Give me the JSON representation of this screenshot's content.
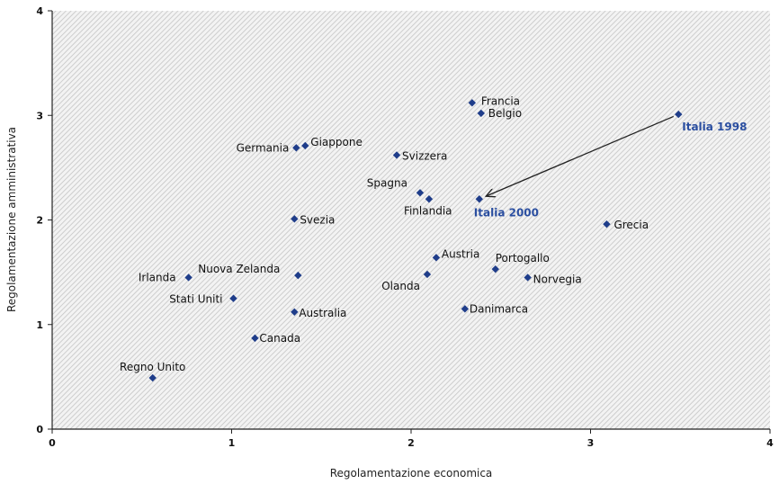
{
  "chart_data": {
    "type": "scatter",
    "xlabel": "Regolamentazione economica",
    "ylabel": "Regolamentazione amministrativa",
    "xlim": [
      0,
      4
    ],
    "ylim": [
      0,
      4
    ],
    "xticks": [
      "0",
      "1",
      "2",
      "3",
      "4"
    ],
    "yticks": [
      "0",
      "1",
      "2",
      "3",
      "4"
    ],
    "grid": false,
    "plot_background": "hatched grey",
    "marker_color": "#1f3d8a",
    "highlight_label_color": "#2a4ea0",
    "points": [
      {
        "label": "Francia",
        "x": 2.34,
        "y": 3.12
      },
      {
        "label": "Belgio",
        "x": 2.39,
        "y": 3.02
      },
      {
        "label": "Italia 1998",
        "x": 3.49,
        "y": 3.01,
        "highlight": true
      },
      {
        "label": "Germania",
        "x": 1.36,
        "y": 2.69
      },
      {
        "label": "Giappone",
        "x": 1.41,
        "y": 2.71
      },
      {
        "label": "Svizzera",
        "x": 1.92,
        "y": 2.62
      },
      {
        "label": "Spagna",
        "x": 2.05,
        "y": 2.26
      },
      {
        "label": "Finlandia",
        "x": 2.1,
        "y": 2.2
      },
      {
        "label": "Italia 2000",
        "x": 2.38,
        "y": 2.2,
        "highlight": true
      },
      {
        "label": "Svezia",
        "x": 1.35,
        "y": 2.01
      },
      {
        "label": "Grecia",
        "x": 3.09,
        "y": 1.96
      },
      {
        "label": "Austria",
        "x": 2.14,
        "y": 1.64
      },
      {
        "label": "Portogallo",
        "x": 2.47,
        "y": 1.53
      },
      {
        "label": "Nuova Zelanda",
        "x": 1.37,
        "y": 1.47
      },
      {
        "label": "Olanda",
        "x": 2.09,
        "y": 1.48
      },
      {
        "label": "Irlanda",
        "x": 0.76,
        "y": 1.45
      },
      {
        "label": "Norvegia",
        "x": 2.65,
        "y": 1.45
      },
      {
        "label": "Stati Uniti",
        "x": 1.01,
        "y": 1.25
      },
      {
        "label": "Danimarca",
        "x": 2.3,
        "y": 1.15
      },
      {
        "label": "Australia",
        "x": 1.35,
        "y": 1.12
      },
      {
        "label": "Canada",
        "x": 1.13,
        "y": 0.87
      },
      {
        "label": "Regno Unito",
        "x": 0.56,
        "y": 0.49
      }
    ],
    "annotations": [
      {
        "type": "arrow",
        "from": "Italia 1998",
        "to": "Italia 2000"
      }
    ]
  }
}
